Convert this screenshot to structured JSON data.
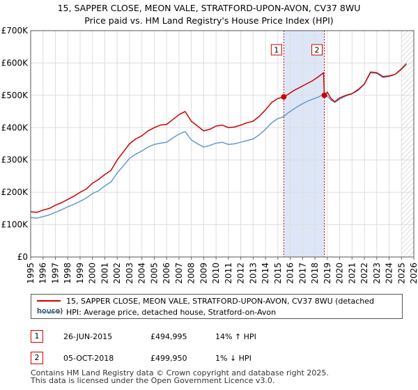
{
  "title_line1": "15, SAPPER CLOSE, MEON VALE, STRATFORD-UPON-AVON, CV37 8WU",
  "title_line2": "Price paid vs. HM Land Registry's House Price Index (HPI)",
  "legend": {
    "red_label": "15, SAPPER CLOSE, MEON VALE, STRATFORD-UPON-AVON, CV37 8WU (detached house)",
    "blue_label": "HPI: Average price, detached house, Stratford-on-Avon"
  },
  "transactions": [
    {
      "badge": "1",
      "date": "26-JUN-2015",
      "price": "£494,995",
      "hpi": "14% ↑ HPI"
    },
    {
      "badge": "2",
      "date": "05-OCT-2018",
      "price": "£499,950",
      "hpi": "1% ↓ HPI"
    }
  ],
  "footer": {
    "line1": "Contains HM Land Registry data © Crown copyright and database right 2025.",
    "line2": "This data is licensed under the Open Government Licence v3.0."
  },
  "colors": {
    "red": "#cc0000",
    "blue": "#6699cc",
    "shade": "#dde6f7",
    "grid": "#dddddd"
  },
  "chart_data": {
    "type": "line",
    "xlim": [
      1995,
      2026
    ],
    "ylim": [
      0,
      700000
    ],
    "yticks": [
      0,
      100000,
      200000,
      300000,
      400000,
      500000,
      600000,
      700000
    ],
    "ytick_labels": [
      "£0",
      "£100K",
      "£200K",
      "£300K",
      "£400K",
      "£500K",
      "£600K",
      "£700K"
    ],
    "xticks": [
      1995,
      1996,
      1997,
      1998,
      1999,
      2000,
      2001,
      2002,
      2003,
      2004,
      2005,
      2006,
      2007,
      2008,
      2009,
      2010,
      2011,
      2012,
      2013,
      2014,
      2015,
      2016,
      2017,
      2018,
      2019,
      2020,
      2021,
      2022,
      2023,
      2024,
      2025,
      2026
    ],
    "xtick_labels": [
      "1995",
      "1996",
      "1997",
      "1998",
      "1999",
      "2000",
      "2001",
      "2002",
      "2003",
      "2004",
      "2005",
      "2006",
      "2007",
      "2008",
      "2009",
      "2010",
      "2011",
      "2012",
      "2013",
      "2014",
      "2015",
      "2016",
      "2017",
      "2018",
      "2019",
      "2020",
      "2021",
      "2022",
      "2023",
      "2024",
      "2025",
      "2026"
    ],
    "shaded_region": [
      2015.48,
      2018.76
    ],
    "hatched_from": 2025.0,
    "series": [
      {
        "name": "15, SAPPER CLOSE, MEON VALE, STRATFORD-UPON-AVON, CV37 8WU (detached house)",
        "color": "#cc0000",
        "x": [
          1995.0,
          1995.5,
          1996.0,
          1996.5,
          1997.0,
          1997.5,
          1998.0,
          1998.5,
          1999.0,
          1999.5,
          2000.0,
          2000.5,
          2001.0,
          2001.5,
          2002.0,
          2002.5,
          2003.0,
          2003.5,
          2004.0,
          2004.5,
          2005.0,
          2005.5,
          2006.0,
          2006.5,
          2007.0,
          2007.5,
          2008.0,
          2008.5,
          2009.0,
          2009.5,
          2010.0,
          2010.5,
          2011.0,
          2011.5,
          2012.0,
          2012.5,
          2013.0,
          2013.5,
          2014.0,
          2014.5,
          2015.0,
          2015.48,
          2015.8,
          2016.3,
          2016.8,
          2017.3,
          2017.8,
          2018.3,
          2018.7,
          2018.76,
          2019.0,
          2019.3,
          2019.6,
          2020.0,
          2020.5,
          2021.0,
          2021.5,
          2022.0,
          2022.5,
          2023.0,
          2023.5,
          2024.0,
          2024.5,
          2025.0,
          2025.4
        ],
        "y": [
          140000,
          138000,
          145000,
          150000,
          160000,
          168000,
          178000,
          188000,
          200000,
          210000,
          228000,
          240000,
          255000,
          268000,
          300000,
          325000,
          350000,
          365000,
          375000,
          390000,
          400000,
          408000,
          410000,
          425000,
          440000,
          450000,
          420000,
          405000,
          390000,
          395000,
          405000,
          408000,
          400000,
          402000,
          408000,
          415000,
          420000,
          435000,
          455000,
          478000,
          490000,
          494995,
          502000,
          515000,
          525000,
          535000,
          545000,
          558000,
          570000,
          499950,
          510000,
          490000,
          480000,
          492000,
          500000,
          505000,
          518000,
          535000,
          572000,
          570000,
          558000,
          560000,
          565000,
          582000,
          598000
        ]
      },
      {
        "name": "HPI: Average price, detached house, Stratford-on-Avon",
        "color": "#6699cc",
        "x": [
          1995.0,
          1995.5,
          1996.0,
          1996.5,
          1997.0,
          1997.5,
          1998.0,
          1998.5,
          1999.0,
          1999.5,
          2000.0,
          2000.5,
          2001.0,
          2001.5,
          2002.0,
          2002.5,
          2003.0,
          2003.5,
          2004.0,
          2004.5,
          2005.0,
          2005.5,
          2006.0,
          2006.5,
          2007.0,
          2007.5,
          2008.0,
          2008.5,
          2009.0,
          2009.5,
          2010.0,
          2010.5,
          2011.0,
          2011.5,
          2012.0,
          2012.5,
          2013.0,
          2013.5,
          2014.0,
          2014.5,
          2015.0,
          2015.48,
          2015.8,
          2016.3,
          2016.8,
          2017.3,
          2017.8,
          2018.3,
          2018.76,
          2019.0,
          2019.3,
          2019.6,
          2020.0,
          2020.5,
          2021.0,
          2021.5,
          2022.0,
          2022.5,
          2023.0,
          2023.5,
          2024.0,
          2024.5,
          2025.0,
          2025.4
        ],
        "y": [
          122000,
          120000,
          125000,
          130000,
          138000,
          146000,
          155000,
          163000,
          172000,
          182000,
          196000,
          205000,
          220000,
          232000,
          260000,
          282000,
          305000,
          318000,
          328000,
          340000,
          348000,
          352000,
          355000,
          368000,
          380000,
          388000,
          362000,
          350000,
          340000,
          345000,
          352000,
          355000,
          348000,
          350000,
          355000,
          360000,
          365000,
          378000,
          395000,
          415000,
          428000,
          434000,
          445000,
          458000,
          470000,
          480000,
          488000,
          495000,
          505000,
          498000,
          485000,
          478000,
          488000,
          498000,
          505000,
          515000,
          535000,
          570000,
          568000,
          555000,
          558000,
          565000,
          580000,
          596000
        ]
      }
    ],
    "sales": [
      {
        "label": "1",
        "x": 2015.48,
        "y": 494995
      },
      {
        "label": "2",
        "x": 2018.76,
        "y": 499950
      }
    ]
  }
}
